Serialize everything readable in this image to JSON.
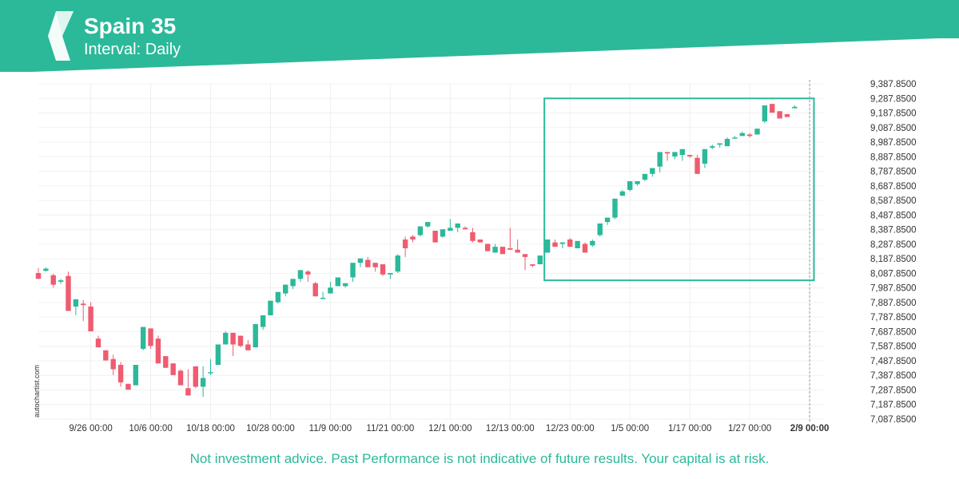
{
  "header": {
    "title": "Spain 35",
    "subtitle": "Interval: Daily",
    "logo_icon": "autochartist-logo-icon",
    "accent_color": "#2bb99a"
  },
  "watermark": "autochartist.com",
  "footer": {
    "disclaimer": "Not investment advice. Past Performance is not indicative of future results. Your capital is at risk."
  },
  "chart_data": {
    "type": "candlestick",
    "up_color": "#2bb99a",
    "down_color": "#ef5b6f",
    "ylim": [
      7087.85,
      9387.85
    ],
    "y_ticks": [
      "9,387.8500",
      "9,287.8500",
      "9,187.8500",
      "9,087.8500",
      "8,987.8500",
      "8,887.8500",
      "8,787.8500",
      "8,687.8500",
      "8,587.8500",
      "8,487.8500",
      "8,387.8500",
      "8,287.8500",
      "8,187.8500",
      "8,087.8500",
      "7,987.8500",
      "7,887.8500",
      "7,787.8500",
      "7,687.8500",
      "7,587.8500",
      "7,487.8500",
      "7,387.8500",
      "7,287.8500",
      "7,187.8500",
      "7,087.8500"
    ],
    "x_ticks": [
      {
        "label": "9/26 00:00",
        "index": 7
      },
      {
        "label": "10/6 00:00",
        "index": 15
      },
      {
        "label": "10/18 00:00",
        "index": 23
      },
      {
        "label": "10/28 00:00",
        "index": 31
      },
      {
        "label": "11/9 00:00",
        "index": 39
      },
      {
        "label": "11/21 00:00",
        "index": 47
      },
      {
        "label": "12/1 00:00",
        "index": 55
      },
      {
        "label": "12/13 00:00",
        "index": 63
      },
      {
        "label": "12/23 00:00",
        "index": 71
      },
      {
        "label": "1/5 00:00",
        "index": 79
      },
      {
        "label": "1/17 00:00",
        "index": 87
      },
      {
        "label": "1/27 00:00",
        "index": 95
      },
      {
        "label": "2/9 00:00",
        "index": 103,
        "bold": true
      }
    ],
    "candles": [
      [
        8090,
        8125,
        8055,
        8050
      ],
      [
        8105,
        8130,
        8100,
        8120
      ],
      [
        8075,
        8085,
        7990,
        8010
      ],
      [
        8030,
        8050,
        8015,
        8040
      ],
      [
        8070,
        8100,
        7850,
        7830
      ],
      [
        7860,
        7900,
        7800,
        7910
      ],
      [
        7880,
        7905,
        7760,
        7870
      ],
      [
        7860,
        7890,
        7830,
        7690
      ],
      [
        7640,
        7580,
        7660,
        7580
      ],
      [
        7560,
        7510,
        7540,
        7490
      ],
      [
        7500,
        7390,
        7530,
        7430
      ],
      [
        7460,
        7310,
        7480,
        7340
      ],
      [
        7330,
        7310,
        7320,
        7290
      ],
      [
        7320,
        7330,
        7450,
        7460
      ],
      [
        7570,
        7560,
        7690,
        7720
      ],
      [
        7710,
        7570,
        7700,
        7590
      ],
      [
        7640,
        7490,
        7660,
        7470
      ],
      [
        7520,
        7470,
        7500,
        7440
      ],
      [
        7470,
        7390,
        7450,
        7390
      ],
      [
        7420,
        7360,
        7430,
        7320
      ],
      [
        7300,
        7380,
        7430,
        7250
      ],
      [
        7450,
        7300,
        7350,
        7310
      ],
      [
        7310,
        7240,
        7450,
        7370
      ],
      [
        7410,
        7390,
        7500,
        7410
      ],
      [
        7460,
        7470,
        7590,
        7600
      ],
      [
        7600,
        7610,
        7690,
        7680
      ],
      [
        7680,
        7680,
        7520,
        7600
      ],
      [
        7660,
        7620,
        7580,
        7590
      ],
      [
        7600,
        7630,
        7620,
        7560
      ],
      [
        7580,
        7580,
        7600,
        7740
      ],
      [
        7720,
        7700,
        7780,
        7800
      ],
      [
        7800,
        7810,
        7880,
        7900
      ],
      [
        7890,
        7880,
        7940,
        7960
      ],
      [
        7950,
        7930,
        8000,
        8010
      ],
      [
        8000,
        7980,
        8030,
        8050
      ],
      [
        8050,
        8030,
        8080,
        8110
      ],
      [
        8100,
        8110,
        8030,
        8080
      ],
      [
        8020,
        8030,
        7990,
        7930
      ],
      [
        7920,
        7950,
        7960,
        7920
      ],
      [
        7950,
        7960,
        8030,
        7990
      ],
      [
        8000,
        8010,
        8010,
        8060
      ],
      [
        8000,
        7990,
        8020,
        8020
      ],
      [
        8060,
        8030,
        8140,
        8160
      ],
      [
        8160,
        8130,
        8180,
        8190
      ],
      [
        8180,
        8200,
        8140,
        8130
      ],
      [
        8160,
        8160,
        8100,
        8130
      ],
      [
        8150,
        8100,
        8070,
        8080
      ],
      [
        8080,
        8050,
        8080,
        8090
      ],
      [
        8100,
        8090,
        8220,
        8210
      ],
      [
        8320,
        8200,
        8340,
        8260
      ],
      [
        8340,
        8300,
        8350,
        8320
      ],
      [
        8350,
        8340,
        8400,
        8410
      ],
      [
        8410,
        8400,
        8430,
        8440
      ],
      [
        8380,
        8380,
        8310,
        8300
      ],
      [
        8340,
        8330,
        8380,
        8390
      ],
      [
        8380,
        8460,
        8410,
        8400
      ],
      [
        8400,
        8370,
        8390,
        8430
      ],
      [
        8400,
        8390,
        8410,
        8390
      ],
      [
        8370,
        8400,
        8300,
        8310
      ],
      [
        8320,
        8300,
        8310,
        8300
      ],
      [
        8290,
        8280,
        8280,
        8240
      ],
      [
        8230,
        8240,
        8290,
        8270
      ],
      [
        8270,
        8220,
        8230,
        8220
      ],
      [
        8260,
        8330,
        8400,
        8250
      ],
      [
        8250,
        8320,
        8240,
        8230
      ],
      [
        8220,
        8190,
        8110,
        8200
      ],
      [
        8150,
        8140,
        8130,
        8140
      ],
      [
        8150,
        8160,
        8210,
        8210
      ],
      [
        8230,
        8230,
        8310,
        8320
      ],
      [
        8300,
        8310,
        8320,
        8270
      ],
      [
        8290,
        8260,
        8300,
        8300
      ],
      [
        8320,
        8330,
        8280,
        8270
      ],
      [
        8260,
        8260,
        8300,
        8310
      ],
      [
        8290,
        8300,
        8250,
        8230
      ],
      [
        8280,
        8270,
        8320,
        8310
      ],
      [
        8350,
        8340,
        8420,
        8430
      ],
      [
        8440,
        8420,
        8470,
        8470
      ],
      [
        8470,
        8460,
        8600,
        8600
      ],
      [
        8620,
        8620,
        8660,
        8650
      ],
      [
        8660,
        8650,
        8720,
        8720
      ],
      [
        8700,
        8690,
        8720,
        8720
      ],
      [
        8730,
        8720,
        8760,
        8770
      ],
      [
        8770,
        8750,
        8790,
        8810
      ],
      [
        8820,
        8780,
        8890,
        8920
      ],
      [
        8920,
        8900,
        8860,
        8910
      ],
      [
        8890,
        8870,
        8910,
        8920
      ],
      [
        8900,
        8860,
        8890,
        8940
      ],
      [
        8900,
        8880,
        8880,
        8890
      ],
      [
        8880,
        8900,
        8830,
        8770
      ],
      [
        8840,
        8810,
        8930,
        8940
      ],
      [
        8950,
        8940,
        8970,
        8960
      ],
      [
        8970,
        8950,
        8970,
        8980
      ],
      [
        8960,
        8970,
        9020,
        9010
      ],
      [
        9020,
        9030,
        9030,
        9020
      ],
      [
        9030,
        9060,
        9060,
        9050
      ],
      [
        9040,
        9050,
        9020,
        9030
      ],
      [
        9040,
        9060,
        9080,
        9080
      ],
      [
        9130,
        9120,
        9230,
        9240
      ],
      [
        9250,
        9240,
        9200,
        9190
      ],
      [
        9200,
        9190,
        9160,
        9150
      ],
      [
        9180,
        9160,
        9170,
        9160
      ],
      [
        9220,
        9240,
        9220,
        9230
      ]
    ],
    "highlight_box": {
      "from_index": 68,
      "to_index": 104,
      "y_high": 9287.85,
      "y_low": 8040
    },
    "current_marker_index": 103
  }
}
